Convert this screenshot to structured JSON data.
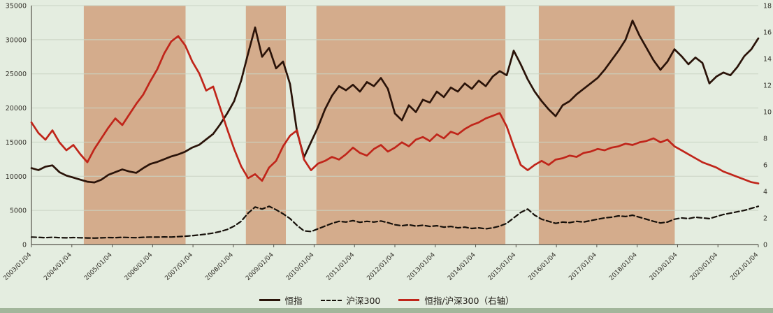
{
  "page": {
    "background_color": "#e4ede0",
    "footer_bar_color": "#a2b69b"
  },
  "chart_data": {
    "type": "line",
    "title": "",
    "grid": {
      "color": "#c9d4c4",
      "on": true
    },
    "axis_color": "#55534a",
    "label_color": "#34322b",
    "x_labels": [
      "2003/01/04",
      "2004/01/04",
      "2005/01/04",
      "2006/01/04",
      "2007/01/04",
      "2008/01/04",
      "2009/01/04",
      "2010/01/04",
      "2011/01/04",
      "2012/01/04",
      "2013/01/04",
      "2014/01/04",
      "2015/01/04",
      "2016/01/04",
      "2017/01/04",
      "2018/01/04",
      "2019/01/04",
      "2020/01/04",
      "2021/01/04"
    ],
    "left_axis": {
      "min": 0,
      "max": 35000,
      "ticks": [
        0,
        5000,
        10000,
        15000,
        20000,
        25000,
        30000,
        35000
      ],
      "tick_labels": [
        "0",
        "5000",
        "10000",
        "15000",
        "20000",
        "25000",
        "30000",
        "35000"
      ]
    },
    "right_axis": {
      "min": 0,
      "max": 18,
      "ticks": [
        0,
        2,
        4,
        6,
        8,
        10,
        12,
        14,
        16,
        18
      ],
      "tick_labels": [
        "0",
        "2",
        "4",
        "6",
        "8",
        "10",
        "12",
        "14",
        "16",
        "18"
      ]
    },
    "shaded_bands": {
      "color": "#cf9b77",
      "opacity": 0.8,
      "ranges_frac": [
        [
          0.072,
          0.212
        ],
        [
          0.295,
          0.35
        ],
        [
          0.392,
          0.652
        ],
        [
          0.698,
          0.885
        ]
      ]
    },
    "legend_position": "bottom-center",
    "series": [
      {
        "name": "恒指",
        "axis": "left",
        "style": "solid",
        "color": "#2a1309",
        "values": [
          11200,
          10900,
          11400,
          11600,
          10600,
          10100,
          9800,
          9500,
          9200,
          9100,
          9500,
          10200,
          10600,
          11000,
          10700,
          10500,
          11200,
          11800,
          12100,
          12500,
          12900,
          13200,
          13600,
          14200,
          14600,
          15400,
          16200,
          17600,
          19200,
          21000,
          24000,
          28000,
          31800,
          27500,
          28800,
          25800,
          26800,
          23500,
          16500,
          12800,
          15000,
          17200,
          19800,
          21800,
          23200,
          22600,
          23400,
          22400,
          23800,
          23200,
          24400,
          22800,
          19200,
          18200,
          20400,
          19400,
          21200,
          20800,
          22400,
          21600,
          23000,
          22400,
          23600,
          22800,
          24000,
          23200,
          24600,
          25400,
          24800,
          28400,
          26400,
          24200,
          22400,
          21000,
          19800,
          18800,
          20400,
          21000,
          22000,
          22800,
          23600,
          24400,
          25600,
          27000,
          28400,
          30000,
          32800,
          30600,
          28800,
          27000,
          25600,
          26800,
          28600,
          27600,
          26400,
          27400,
          26600,
          23600,
          24600,
          25200,
          24800,
          26000,
          27600,
          28600,
          30200
        ]
      },
      {
        "name": "沪深300",
        "axis": "left",
        "style": "dashed",
        "color": "#16100a",
        "values": [
          1100,
          1050,
          1000,
          1060,
          1000,
          980,
          1020,
          990,
          960,
          940,
          980,
          1020,
          1000,
          1060,
          1020,
          1000,
          1060,
          1100,
          1080,
          1120,
          1100,
          1160,
          1220,
          1300,
          1400,
          1520,
          1680,
          1900,
          2200,
          2700,
          3400,
          4600,
          5500,
          5200,
          5600,
          5100,
          4500,
          3800,
          2800,
          2000,
          1900,
          2300,
          2700,
          3100,
          3400,
          3300,
          3500,
          3250,
          3400,
          3300,
          3450,
          3200,
          2900,
          2750,
          2900,
          2700,
          2820,
          2650,
          2750,
          2550,
          2650,
          2450,
          2550,
          2350,
          2450,
          2300,
          2450,
          2700,
          3100,
          3900,
          4700,
          5200,
          4300,
          3700,
          3400,
          3100,
          3300,
          3200,
          3400,
          3300,
          3500,
          3700,
          3900,
          4000,
          4200,
          4100,
          4300,
          4000,
          3700,
          3400,
          3150,
          3300,
          3700,
          3900,
          3800,
          4000,
          3900,
          3800,
          4100,
          4400,
          4600,
          4800,
          5000,
          5300,
          5600
        ]
      },
      {
        "name": "恒指/沪深300（右轴）",
        "axis": "right",
        "style": "solid",
        "color": "#c0251a",
        "values": [
          9.2,
          8.4,
          7.9,
          8.6,
          7.7,
          7.1,
          7.5,
          6.8,
          6.2,
          7.2,
          8.0,
          8.8,
          9.5,
          9.0,
          9.8,
          10.6,
          11.3,
          12.3,
          13.2,
          14.4,
          15.3,
          15.7,
          15.0,
          13.8,
          12.9,
          11.6,
          11.9,
          10.3,
          8.7,
          7.2,
          5.9,
          5.0,
          5.3,
          4.8,
          5.8,
          6.3,
          7.4,
          8.2,
          8.6,
          6.4,
          5.6,
          6.1,
          6.3,
          6.6,
          6.4,
          6.8,
          7.3,
          6.9,
          6.7,
          7.2,
          7.5,
          7.0,
          7.3,
          7.7,
          7.4,
          7.9,
          8.1,
          7.8,
          8.3,
          8.0,
          8.5,
          8.3,
          8.7,
          9.0,
          9.2,
          9.5,
          9.7,
          9.9,
          8.9,
          7.4,
          6.0,
          5.6,
          6.0,
          6.3,
          6.0,
          6.4,
          6.5,
          6.7,
          6.6,
          6.9,
          7.0,
          7.2,
          7.1,
          7.3,
          7.4,
          7.6,
          7.5,
          7.7,
          7.8,
          8.0,
          7.7,
          7.9,
          7.4,
          7.1,
          6.8,
          6.5,
          6.2,
          6.0,
          5.8,
          5.5,
          5.3,
          5.1,
          4.9,
          4.7,
          4.6
        ]
      }
    ]
  }
}
